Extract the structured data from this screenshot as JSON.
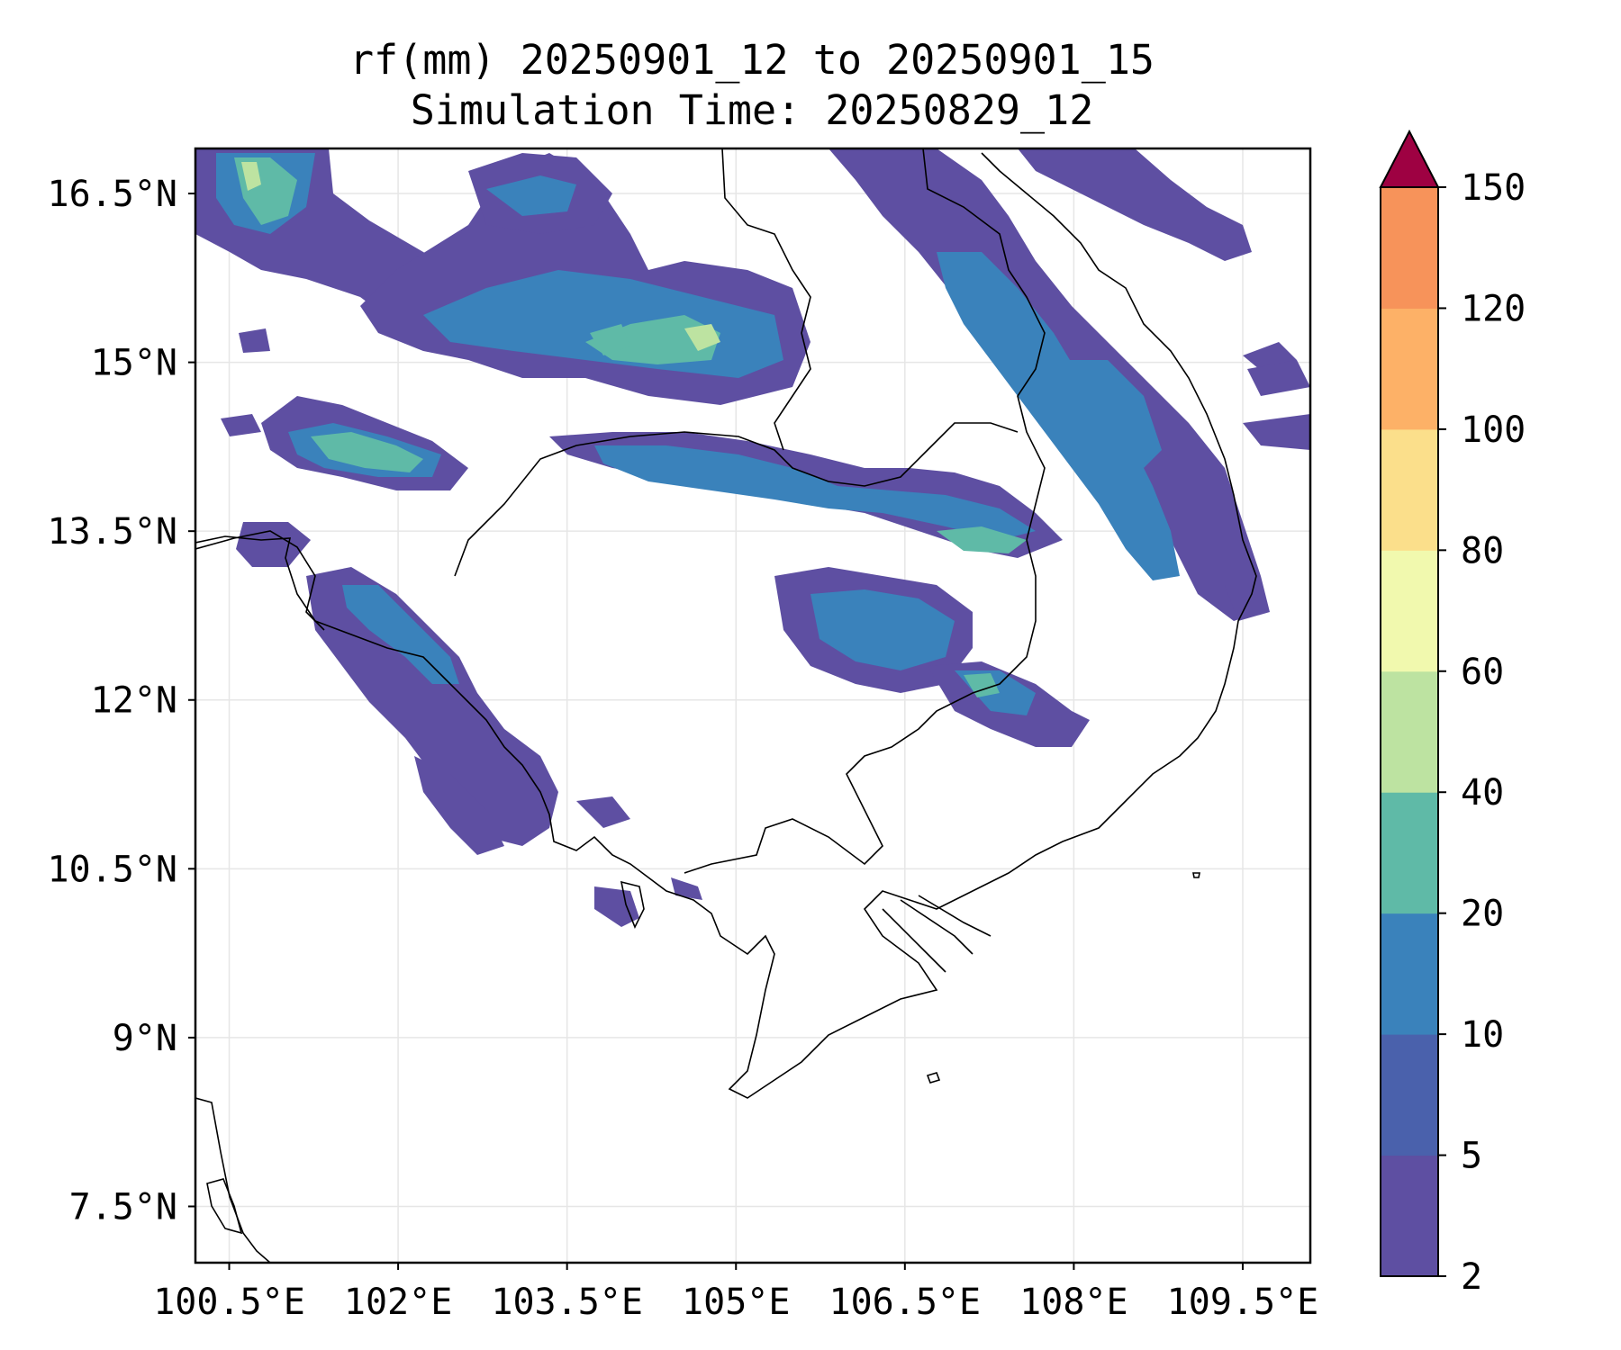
{
  "title": {
    "line1": "rf(mm) 20250901_12 to 20250901_15",
    "line2": "Simulation Time: 20250829_12"
  },
  "map": {
    "lon_range": [
      100.2,
      110.1
    ],
    "lat_range": [
      7.0,
      16.9
    ],
    "lon_ticks": [
      "100.5°E",
      "102°E",
      "103.5°E",
      "105°E",
      "106.5°E",
      "108°E",
      "109.5°E"
    ],
    "lat_ticks": [
      "7.5°N",
      "9°N",
      "10.5°N",
      "12°N",
      "13.5°N",
      "15°N",
      "16.5°N"
    ],
    "grid": true,
    "colormap": "Spectral_r"
  },
  "colorbar": {
    "levels": [
      "2",
      "5",
      "10",
      "20",
      "40",
      "60",
      "80",
      "100",
      "120",
      "150"
    ],
    "colors": [
      "#5e4fa2",
      "#4a61ac",
      "#3a82bb",
      "#5fbaa7",
      "#bde3a1",
      "#f1f9ae",
      "#fbdf8b",
      "#fdb167",
      "#f7935a",
      "#d43d4f"
    ],
    "extend_color": "#9e0142",
    "extend": "max"
  },
  "rain_areas": [
    {
      "lon": 101.0,
      "lat": 16.5,
      "mm": 10
    },
    {
      "lon": 104.2,
      "lat": 15.3,
      "mm": 20
    },
    {
      "lon": 101.6,
      "lat": 14.2,
      "mm": 20
    },
    {
      "lon": 106.6,
      "lat": 13.5,
      "mm": 20
    },
    {
      "lon": 107.0,
      "lat": 15.0,
      "mm": 10
    },
    {
      "lon": 102.3,
      "lat": 12.5,
      "mm": 10
    },
    {
      "lon": 107.3,
      "lat": 12.1,
      "mm": 20
    }
  ]
}
